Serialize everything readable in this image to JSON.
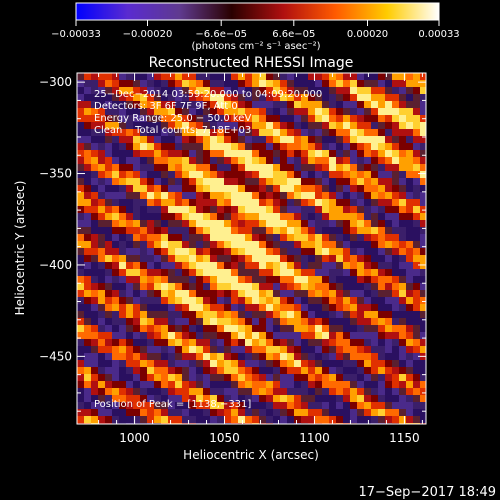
{
  "chart_data": {
    "type": "heatmap",
    "title": "Reconstructed RHESSI Image",
    "xlabel": "Heliocentric X (arcsec)",
    "ylabel": "Heliocentric Y (arcsec)",
    "xlim": [
      968,
      1162
    ],
    "ylim": [
      -487,
      -295
    ],
    "x_ticks": [
      1000,
      1050,
      1100,
      1150
    ],
    "x_tick_labels": [
      "1000",
      "1050",
      "1100",
      "1150"
    ],
    "y_ticks": [
      -300,
      -350,
      -400,
      -450
    ],
    "y_tick_labels": [
      "−300",
      "−350",
      "−400",
      "−450"
    ],
    "colorbar": {
      "min": -0.00033,
      "max": 0.00033,
      "tick_values": [
        -0.00033,
        -0.0002,
        -6.6e-05,
        6.6e-05,
        0.0002,
        0.00033
      ],
      "tick_labels": [
        "−0.00033",
        "−0.00020",
        "−6.6e−05",
        "6.6e−05",
        "0.00020",
        "0.00033"
      ],
      "unit_label": "(photons cm⁻² s⁻¹ asec⁻²)",
      "colors": [
        "#0000ff",
        "#5a2bd0",
        "#5f3a8f",
        "#2a0000",
        "#b01010",
        "#ff5a00",
        "#ffcc00",
        "#ffffff"
      ]
    },
    "annotations": [
      "25−Dec−2014 03:59:20.000 to 04:09:20.000",
      "Detectors: 3F 6F 7F 9F, Att 0",
      "Energy Range: 25.0 − 50.0 keV",
      "Clean    Total counts: 7.18E+03"
    ],
    "peak_label": "Position of Peak = [1138,−331]",
    "peak": [
      1138,
      -331
    ],
    "grid": false
  },
  "footer": {
    "timestamp": "17−Sep−2017 18:49"
  }
}
